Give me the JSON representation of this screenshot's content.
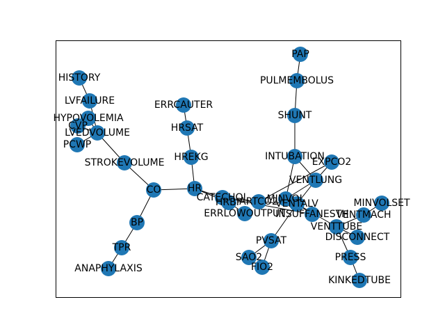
{
  "colors": {
    "node": "#1f77b4",
    "edge": "#000000",
    "text": "#000000"
  },
  "nodes": [
    "HISTORY",
    "LVFAILURE",
    "HYPOVOLEMIA",
    "CVP",
    "LVEDVOLUME",
    "PCWP",
    "STROKEVOLUME",
    "CO",
    "BP",
    "TPR",
    "ANAPHYLAXIS",
    "ERRCAUTER",
    "HRSAT",
    "HREKG",
    "HR",
    "CATECHOL",
    "HRBP",
    "ARTCO2",
    "ERRLOWOUTPUT",
    "PAP",
    "PULMEMBOLUS",
    "SHUNT",
    "INTUBATION",
    "EXPCO2",
    "VENTLUNG",
    "MINVOL",
    "VENTALV",
    "INSUFFANESTH",
    "PVSAT",
    "SAO2",
    "FIO2",
    "MINVOLSET",
    "VENTMACH",
    "VENTTUBE",
    "DISCONNECT",
    "PRESS",
    "KINKEDTUBE"
  ],
  "edges": [
    [
      "HISTORY",
      "LVFAILURE"
    ],
    [
      "LVFAILURE",
      "LVEDVOLUME"
    ],
    [
      "HYPOVOLEMIA",
      "LVEDVOLUME"
    ],
    [
      "CVP",
      "LVEDVOLUME"
    ],
    [
      "PCWP",
      "LVEDVOLUME"
    ],
    [
      "LVEDVOLUME",
      "STROKEVOLUME"
    ],
    [
      "STROKEVOLUME",
      "CO"
    ],
    [
      "CO",
      "HR"
    ],
    [
      "CO",
      "BP"
    ],
    [
      "BP",
      "TPR"
    ],
    [
      "TPR",
      "ANAPHYLAXIS"
    ],
    [
      "ERRCAUTER",
      "HRSAT"
    ],
    [
      "HRSAT",
      "HREKG"
    ],
    [
      "HREKG",
      "HR"
    ],
    [
      "HR",
      "CATECHOL"
    ],
    [
      "HR",
      "HRBP"
    ],
    [
      "CATECHOL",
      "ARTCO2"
    ],
    [
      "HRBP",
      "ERRLOWOUTPUT"
    ],
    [
      "CATECHOL",
      "INSUFFANESTH"
    ],
    [
      "ARTCO2",
      "VENTALV"
    ],
    [
      "ARTCO2",
      "EXPCO2"
    ],
    [
      "PAP",
      "PULMEMBOLUS"
    ],
    [
      "PULMEMBOLUS",
      "SHUNT"
    ],
    [
      "SHUNT",
      "INTUBATION"
    ],
    [
      "INTUBATION",
      "VENTLUNG"
    ],
    [
      "VENTLUNG",
      "VENTALV"
    ],
    [
      "VENTLUNG",
      "EXPCO2"
    ],
    [
      "VENTLUNG",
      "MINVOL"
    ],
    [
      "INTUBATION",
      "MINVOL"
    ],
    [
      "VENTALV",
      "PVSAT"
    ],
    [
      "PVSAT",
      "SAO2"
    ],
    [
      "PVSAT",
      "FIO2"
    ],
    [
      "VENTALV",
      "VENTTUBE"
    ],
    [
      "MINVOLSET",
      "VENTMACH"
    ],
    [
      "VENTMACH",
      "VENTTUBE"
    ],
    [
      "VENTTUBE",
      "DISCONNECT"
    ],
    [
      "VENTTUBE",
      "PRESS"
    ],
    [
      "PRESS",
      "KINKEDTUBE"
    ],
    [
      "INSUFFANESTH",
      "VENTALV"
    ]
  ]
}
